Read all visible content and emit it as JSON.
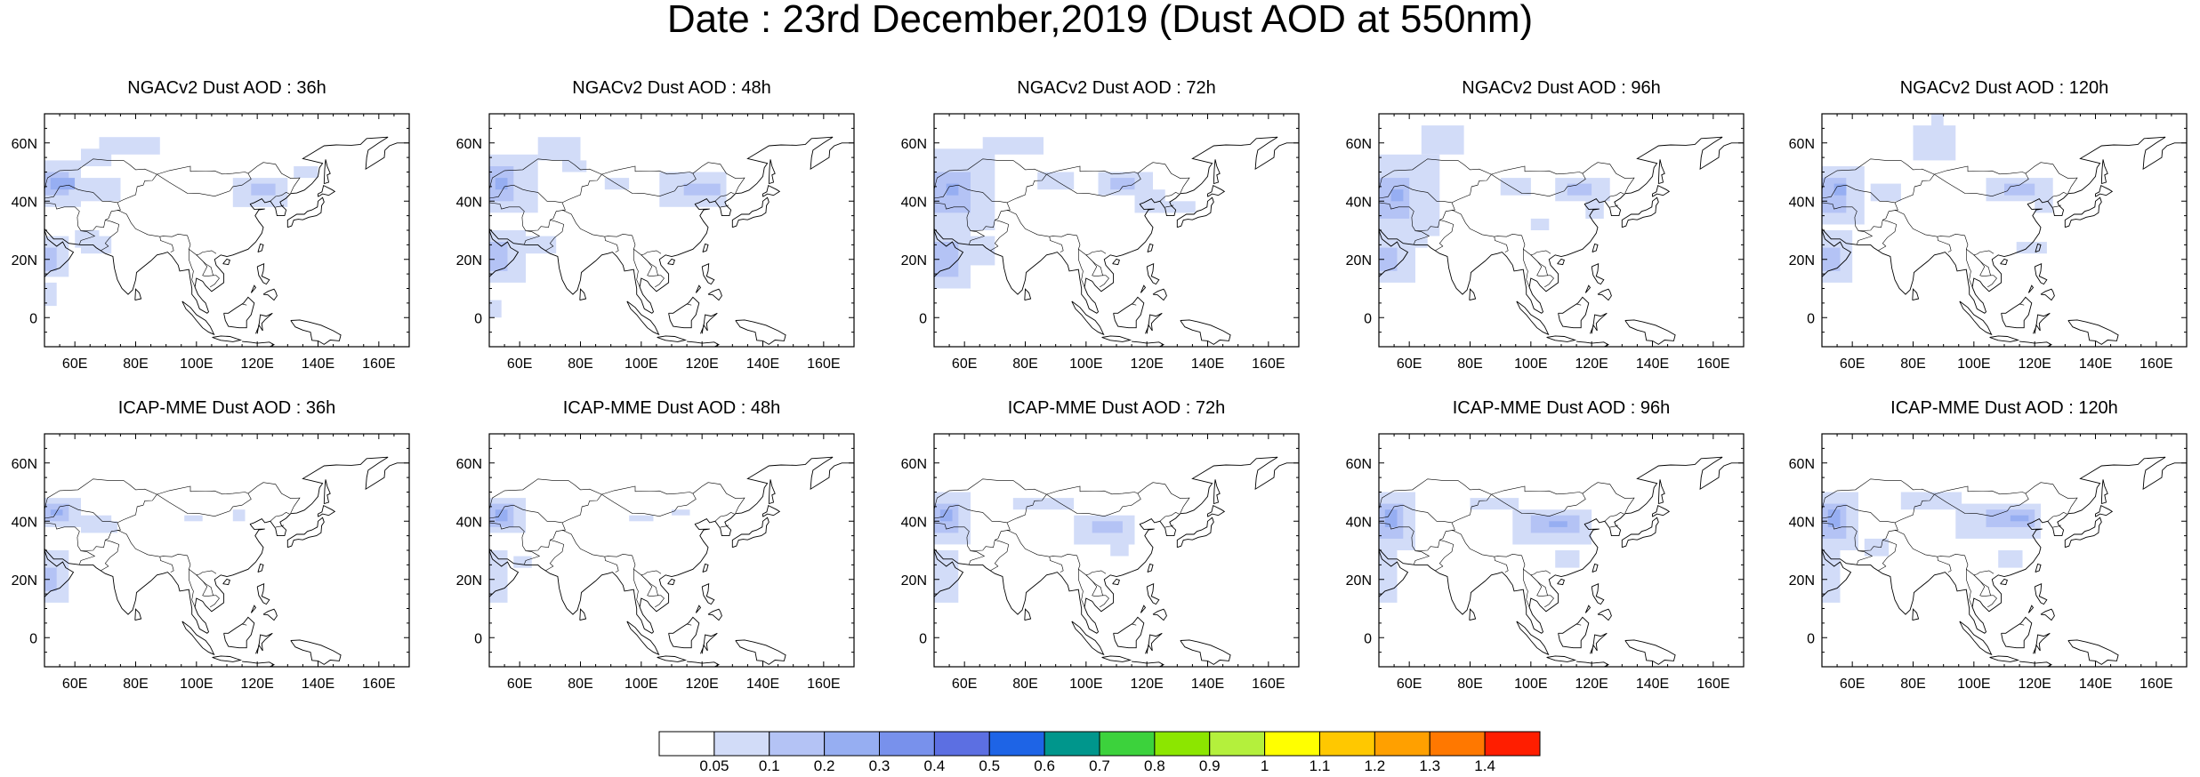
{
  "title": "Date : 23rd December,2019 (Dust AOD at 550nm)",
  "panels": [
    {
      "title": "NGACv2 Dust AOD : 36h"
    },
    {
      "title": "NGACv2 Dust AOD : 48h"
    },
    {
      "title": "NGACv2 Dust AOD : 72h"
    },
    {
      "title": "NGACv2 Dust AOD : 96h"
    },
    {
      "title": "NGACv2 Dust AOD : 120h"
    },
    {
      "title": "ICAP-MME Dust AOD : 36h"
    },
    {
      "title": "ICAP-MME Dust AOD : 48h"
    },
    {
      "title": "ICAP-MME Dust AOD : 72h"
    },
    {
      "title": "ICAP-MME Dust AOD : 96h"
    },
    {
      "title": "ICAP-MME Dust AOD : 120h"
    }
  ],
  "map": {
    "lon_range": [
      50,
      170
    ],
    "lat_range": [
      -10,
      70
    ],
    "lon_ticks": [
      "60E",
      "80E",
      "100E",
      "120E",
      "140E",
      "160E"
    ],
    "lat_ticks": [
      "70N",
      "60N",
      "40N",
      "20N",
      "0"
    ],
    "land_color": "#ffffff",
    "coastline_color": "#000000"
  },
  "colorbar": {
    "labels": [
      "0.05",
      "0.1",
      "0.2",
      "0.3",
      "0.4",
      "0.5",
      "0.6",
      "0.7",
      "0.8",
      "0.9",
      "1",
      "1.1",
      "1.2",
      "1.3",
      "1.4"
    ],
    "colors": [
      "#ffffff",
      "#d2dcf8",
      "#b4c3f5",
      "#96aef2",
      "#7891ec",
      "#5c6fe2",
      "#1e64e6",
      "#00968c",
      "#3cd23c",
      "#8ce600",
      "#b4f03c",
      "#ffff00",
      "#ffc800",
      "#ffa000",
      "#ff7800",
      "#ff1e00"
    ]
  }
}
